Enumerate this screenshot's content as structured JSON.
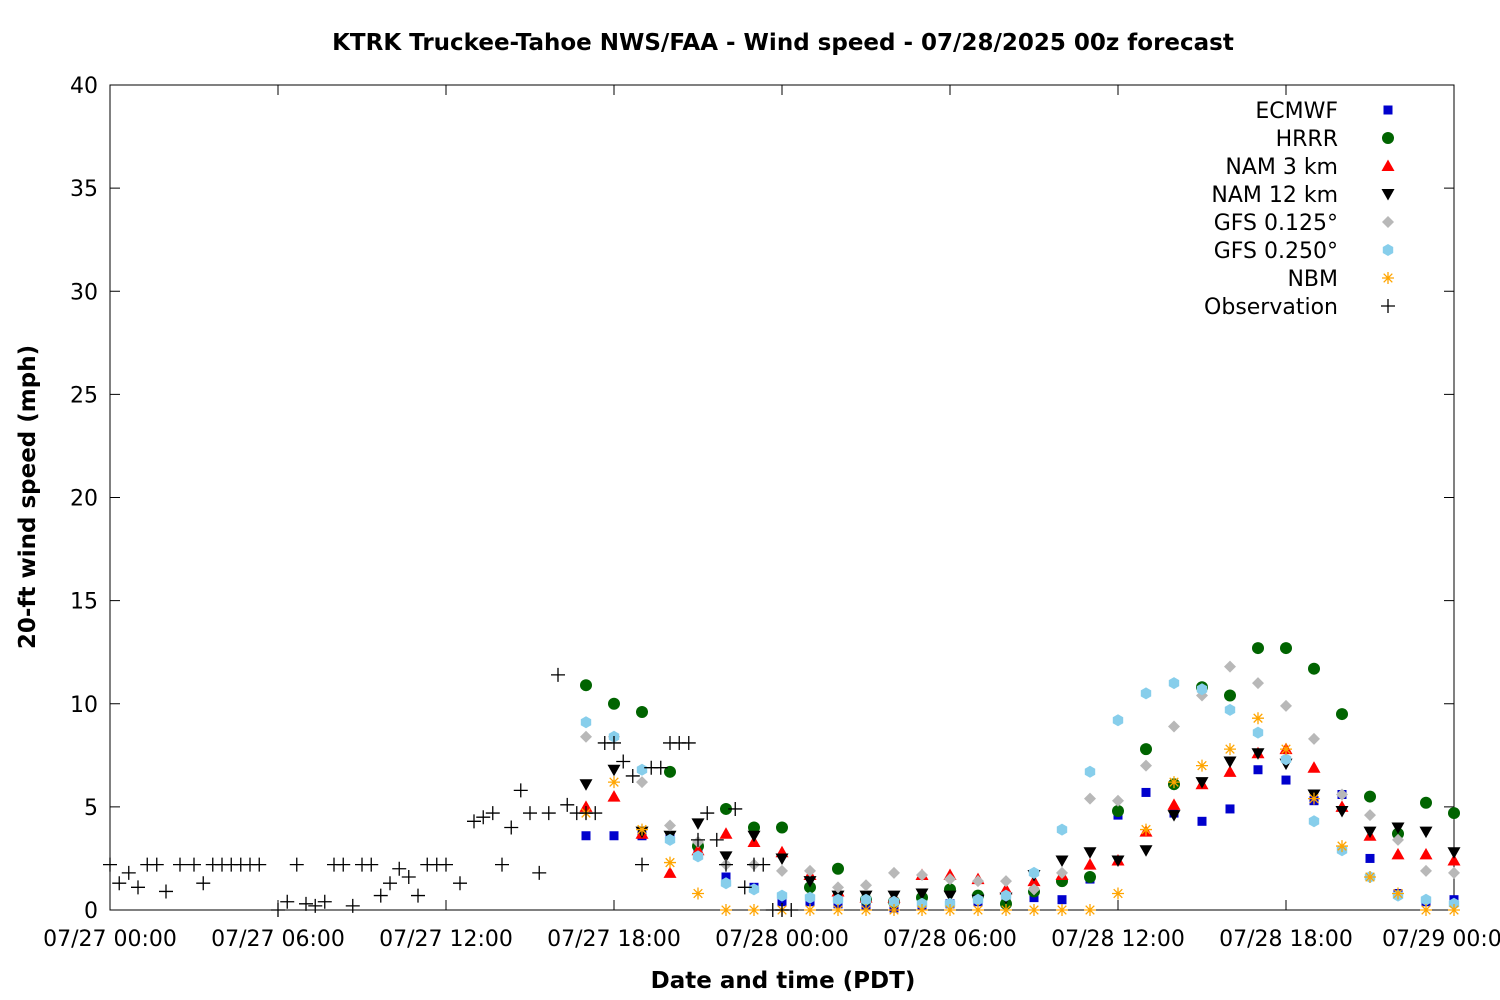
{
  "chart_data": {
    "type": "scatter",
    "title": "KTRK Truckee-Tahoe NWS/FAA - Wind speed - 07/28/2025 00z forecast",
    "xlabel": "Date and time (PDT)",
    "ylabel": "20-ft wind speed (mph)",
    "x_unit": "hours since 07/27 00:00 PDT",
    "xlim": [
      0,
      48
    ],
    "ylim": [
      0,
      40
    ],
    "x_ticks": [
      {
        "x": 0,
        "label": "07/27 00:00"
      },
      {
        "x": 6,
        "label": "07/27 06:00"
      },
      {
        "x": 12,
        "label": "07/27 12:00"
      },
      {
        "x": 18,
        "label": "07/27 18:00"
      },
      {
        "x": 24,
        "label": "07/28 00:00"
      },
      {
        "x": 30,
        "label": "07/28 06:00"
      },
      {
        "x": 36,
        "label": "07/28 12:00"
      },
      {
        "x": 42,
        "label": "07/28 18:00"
      },
      {
        "x": 48,
        "label": "07/29 00:00"
      }
    ],
    "y_ticks": [
      0,
      5,
      10,
      15,
      20,
      25,
      30,
      35,
      40
    ],
    "grid": false,
    "legend_position": "top-right",
    "series": [
      {
        "name": "ECMWF",
        "marker": "square",
        "color": "#0000cd",
        "x": [
          17,
          18,
          19,
          20,
          21,
          22,
          23,
          24,
          25,
          26,
          27,
          28,
          29,
          30,
          31,
          32,
          33,
          34,
          35,
          36,
          37,
          38,
          39,
          40,
          41,
          42,
          43,
          44,
          45,
          46,
          47,
          48
        ],
        "y": [
          3.6,
          3.6,
          3.6,
          3.5,
          3.0,
          1.6,
          1.1,
          0.4,
          0.4,
          0.3,
          0.2,
          0.1,
          0.2,
          0.3,
          0.4,
          0.4,
          0.6,
          0.5,
          1.5,
          4.6,
          5.7,
          4.7,
          4.3,
          4.9,
          6.8,
          6.3,
          5.3,
          5.6,
          2.5,
          0.8,
          0.4,
          0.5
        ]
      },
      {
        "name": "HRRR",
        "marker": "circle",
        "color": "#006400",
        "x": [
          17,
          18,
          19,
          20,
          21,
          22,
          23,
          24,
          25,
          26,
          27,
          28,
          29,
          30,
          31,
          32,
          33,
          34,
          35,
          36,
          37,
          38,
          39,
          40,
          41,
          42,
          43,
          44,
          45,
          46,
          47,
          48
        ],
        "y": [
          10.9,
          10.0,
          9.6,
          6.7,
          3.1,
          4.9,
          4.0,
          4.0,
          1.1,
          2.0,
          0.5,
          0.4,
          0.6,
          1.0,
          0.7,
          0.3,
          0.9,
          1.4,
          1.6,
          4.8,
          7.8,
          6.1,
          10.8,
          10.4,
          12.7,
          12.7,
          11.7,
          9.5,
          5.5,
          3.7,
          5.2,
          4.7
        ]
      },
      {
        "name": "NAM 3 km",
        "marker": "triangle-up",
        "color": "#ff0000",
        "x": [
          17,
          18,
          19,
          20,
          21,
          22,
          23,
          24,
          25,
          26,
          27,
          28,
          29,
          30,
          31,
          32,
          33,
          34,
          35,
          36,
          37,
          38,
          39,
          40,
          41,
          42,
          43,
          44,
          45,
          46,
          47,
          48
        ],
        "y": [
          5.0,
          5.5,
          3.7,
          1.8,
          2.9,
          3.7,
          3.3,
          2.8,
          1.7,
          0.9,
          0.6,
          0.6,
          1.7,
          1.7,
          1.5,
          1.0,
          1.4,
          1.7,
          2.2,
          2.4,
          3.8,
          5.1,
          6.1,
          6.7,
          7.6,
          7.8,
          6.9,
          5.0,
          3.6,
          2.7,
          2.7,
          2.4
        ]
      },
      {
        "name": "NAM 12 km",
        "marker": "triangle-down",
        "color": "#000000",
        "x": [
          17,
          18,
          19,
          20,
          21,
          22,
          23,
          24,
          25,
          26,
          27,
          28,
          29,
          30,
          31,
          32,
          33,
          34,
          35,
          36,
          37,
          38,
          39,
          40,
          41,
          42,
          43,
          44,
          45,
          46,
          47,
          48
        ],
        "y": [
          6.1,
          6.8,
          3.8,
          3.6,
          4.2,
          2.6,
          3.6,
          2.5,
          1.4,
          0.7,
          0.7,
          0.7,
          0.8,
          0.7,
          0.5,
          0.6,
          1.7,
          2.4,
          2.8,
          2.4,
          2.9,
          4.6,
          6.2,
          7.2,
          7.6,
          7.1,
          5.6,
          4.8,
          3.8,
          4.0,
          3.8,
          2.8
        ]
      },
      {
        "name": "GFS 0.125°",
        "marker": "diamond",
        "color": "#b8b8b8",
        "x": [
          17,
          18,
          19,
          20,
          21,
          22,
          23,
          24,
          25,
          26,
          27,
          28,
          29,
          30,
          31,
          32,
          33,
          34,
          35,
          36,
          37,
          38,
          39,
          40,
          41,
          42,
          43,
          44,
          45,
          46,
          47,
          48
        ],
        "y": [
          8.4,
          8.4,
          6.2,
          4.1,
          3.3,
          2.2,
          2.2,
          1.9,
          1.9,
          1.1,
          1.2,
          1.8,
          1.7,
          1.5,
          1.4,
          1.4,
          1.0,
          1.8,
          5.4,
          5.3,
          7.0,
          8.9,
          10.4,
          11.8,
          11.0,
          9.9,
          8.3,
          5.6,
          4.6,
          3.4,
          1.9,
          1.8
        ]
      },
      {
        "name": "GFS 0.250°",
        "marker": "hexagon",
        "color": "#87ceeb",
        "x": [
          17,
          18,
          19,
          20,
          21,
          22,
          23,
          24,
          25,
          26,
          27,
          28,
          29,
          30,
          31,
          32,
          33,
          34,
          35,
          36,
          37,
          38,
          39,
          40,
          41,
          42,
          43,
          44,
          45,
          46,
          47,
          48
        ],
        "y": [
          9.1,
          8.4,
          6.8,
          3.4,
          2.6,
          1.3,
          1.0,
          0.7,
          0.6,
          0.5,
          0.5,
          0.4,
          0.3,
          0.3,
          0.5,
          0.7,
          1.8,
          3.9,
          6.7,
          9.2,
          10.5,
          11.0,
          10.7,
          9.7,
          8.6,
          7.3,
          4.3,
          2.9,
          1.6,
          0.7,
          0.5,
          0.3
        ]
      },
      {
        "name": "NBM",
        "marker": "asterisk",
        "color": "#ffa500",
        "x": [
          17,
          18,
          19,
          20,
          21,
          22,
          23,
          24,
          25,
          26,
          27,
          28,
          29,
          30,
          31,
          32,
          33,
          34,
          35,
          36,
          37,
          38,
          39,
          40,
          41,
          42,
          43,
          44,
          45,
          46,
          47,
          48
        ],
        "y": [
          4.7,
          6.2,
          3.9,
          2.3,
          0.8,
          0.0,
          0.0,
          0.0,
          0.0,
          0.0,
          0.0,
          0.0,
          0.0,
          0.0,
          0.0,
          0.0,
          0.0,
          0.0,
          0.0,
          0.8,
          3.9,
          6.2,
          7.0,
          7.8,
          9.3,
          7.8,
          5.4,
          3.1,
          1.6,
          0.8,
          0.0,
          0.0
        ]
      },
      {
        "name": "Observation",
        "marker": "plus",
        "color": "#000000",
        "x": [
          0,
          0.33,
          0.67,
          1.0,
          1.33,
          1.67,
          2.0,
          2.5,
          3.0,
          3.33,
          3.67,
          4.0,
          4.33,
          4.67,
          5.0,
          5.33,
          6.0,
          6.33,
          6.67,
          7.0,
          7.33,
          7.67,
          8.0,
          8.33,
          8.67,
          9.0,
          9.33,
          9.67,
          10.0,
          10.33,
          10.67,
          11.0,
          11.33,
          11.67,
          12.0,
          12.5,
          13.0,
          13.33,
          13.67,
          14.0,
          14.33,
          14.67,
          15.0,
          15.33,
          15.67,
          16.0,
          16.33,
          16.67,
          17.0,
          17.33,
          17.67,
          18.0,
          18.33,
          18.67,
          19.0,
          19.33,
          19.67,
          20.0,
          20.33,
          20.67,
          21.0,
          21.33,
          21.67,
          22.0,
          22.33,
          22.67,
          23.0,
          23.33,
          23.67,
          24.0,
          24.33
        ],
        "y": [
          2.2,
          1.3,
          1.8,
          1.1,
          2.2,
          2.2,
          0.9,
          2.2,
          2.2,
          1.3,
          2.2,
          2.2,
          2.2,
          2.2,
          2.2,
          2.2,
          0,
          0.4,
          2.2,
          0.3,
          0.2,
          0.4,
          2.2,
          2.2,
          0.2,
          2.2,
          2.2,
          0.7,
          1.3,
          2.0,
          1.6,
          0.7,
          2.2,
          2.2,
          2.2,
          1.3,
          4.3,
          4.5,
          4.7,
          2.2,
          4.0,
          5.8,
          4.7,
          1.8,
          4.7,
          11.4,
          5.1,
          4.7,
          4.7,
          4.7,
          8.1,
          8.1,
          7.2,
          6.5,
          2.2,
          6.9,
          6.9,
          8.1,
          8.1,
          8.1,
          3.4,
          4.7,
          3.4,
          2.2,
          4.9,
          1.1,
          2.2,
          2.2,
          0,
          0,
          0
        ]
      }
    ]
  }
}
